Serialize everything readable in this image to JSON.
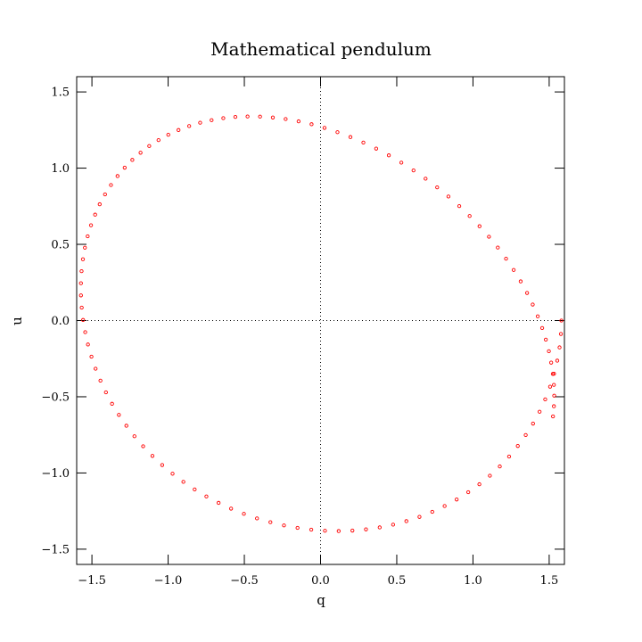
{
  "chart_data": {
    "type": "scatter",
    "title": "Mathematical pendulum",
    "xlabel": "q",
    "ylabel": "u",
    "xlim": [
      -1.6,
      1.6
    ],
    "ylim": [
      -1.6,
      1.6
    ],
    "xticks": [
      -1.5,
      -1.0,
      -0.5,
      0.0,
      0.5,
      1.0,
      1.5
    ],
    "yticks": [
      -1.5,
      -1.0,
      -0.5,
      0.0,
      0.5,
      1.0,
      1.5
    ],
    "xtick_labels": [
      "−1.5",
      "−1.0",
      "−0.5",
      "0.0",
      "0.5",
      "1.0",
      "1.5"
    ],
    "ytick_labels": [
      "−1.5",
      "−1.0",
      "−0.5",
      "0.0",
      "0.5",
      "1.0",
      "1.5"
    ],
    "zero_lines": true,
    "grid": false,
    "marker_color": "#ff0000",
    "zero_line_color": "#000000",
    "series": [
      {
        "trajectory": "closed orbit, q amplitude 1.58, u amplitude 1.41",
        "x": [
          1.58,
          1.577,
          1.568,
          1.553,
          1.532,
          1.506,
          1.474,
          1.437,
          1.394,
          1.346,
          1.294,
          1.237,
          1.176,
          1.111,
          1.042,
          0.969,
          0.893,
          0.814,
          0.733,
          0.649,
          0.563,
          0.476,
          0.388,
          0.298,
          0.209,
          0.119,
          0.029,
          -0.061,
          -0.151,
          -0.24,
          -0.329,
          -0.417,
          -0.503,
          -0.587,
          -0.669,
          -0.749,
          -0.826,
          -0.9,
          -0.971,
          -1.039,
          -1.103,
          -1.164,
          -1.221,
          -1.274,
          -1.323,
          -1.368,
          -1.408,
          -1.444,
          -1.476,
          -1.503,
          -1.526,
          -1.544,
          -1.558,
          -1.567,
          -1.572,
          -1.572,
          -1.568,
          -1.559,
          -1.546,
          -1.528,
          -1.506,
          -1.479,
          -1.449,
          -1.414,
          -1.375,
          -1.332,
          -1.285,
          -1.235,
          -1.181,
          -1.124,
          -1.063,
          -0.999,
          -0.932,
          -0.862,
          -0.79,
          -0.715,
          -0.638,
          -0.559,
          -0.479,
          -0.397,
          -0.313,
          -0.229,
          -0.144,
          -0.059,
          0.026,
          0.111,
          0.196,
          0.281,
          0.365,
          0.448,
          0.53,
          0.61,
          0.689,
          0.765,
          0.839,
          0.91,
          0.978,
          1.043,
          1.105,
          1.163,
          1.217,
          1.267,
          1.313,
          1.355,
          1.392,
          1.425,
          1.454,
          1.478,
          1.498,
          1.513,
          1.524,
          1.531,
          1.533,
          1.531,
          1.525
        ],
        "y": [
          0.0,
          -0.088,
          -0.176,
          -0.263,
          -0.349,
          -0.434,
          -0.517,
          -0.598,
          -0.676,
          -0.751,
          -0.823,
          -0.892,
          -0.957,
          -1.018,
          -1.074,
          -1.126,
          -1.174,
          -1.217,
          -1.255,
          -1.288,
          -1.316,
          -1.339,
          -1.357,
          -1.37,
          -1.378,
          -1.381,
          -1.379,
          -1.372,
          -1.36,
          -1.344,
          -1.323,
          -1.298,
          -1.268,
          -1.234,
          -1.196,
          -1.154,
          -1.108,
          -1.058,
          -1.005,
          -0.948,
          -0.888,
          -0.825,
          -0.759,
          -0.69,
          -0.619,
          -0.546,
          -0.471,
          -0.394,
          -0.316,
          -0.237,
          -0.157,
          -0.076,
          0.004,
          0.085,
          0.165,
          0.245,
          0.324,
          0.402,
          0.478,
          0.553,
          0.625,
          0.695,
          0.763,
          0.828,
          0.889,
          0.948,
          1.003,
          1.054,
          1.101,
          1.145,
          1.184,
          1.219,
          1.25,
          1.276,
          1.298,
          1.315,
          1.328,
          1.336,
          1.339,
          1.338,
          1.332,
          1.322,
          1.307,
          1.288,
          1.264,
          1.236,
          1.204,
          1.168,
          1.128,
          1.084,
          1.036,
          0.985,
          0.931,
          0.874,
          0.814,
          0.751,
          0.686,
          0.619,
          0.55,
          0.479,
          0.406,
          0.332,
          0.257,
          0.181,
          0.105,
          0.028,
          -0.049,
          -0.125,
          -0.201,
          -0.276,
          -0.35,
          -0.422,
          -0.493,
          -0.562,
          -0.629
        ]
      }
    ]
  }
}
